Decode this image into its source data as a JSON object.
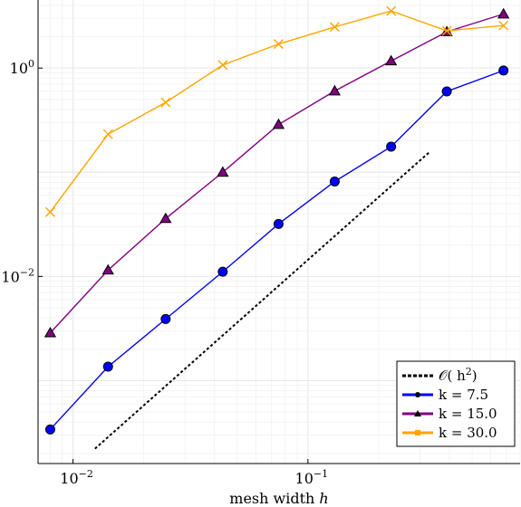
{
  "chart_data": {
    "type": "line",
    "title": "",
    "xlabel": "mesh width h",
    "ylabel": "",
    "xscale": "log",
    "yscale": "log",
    "xlim": [
      0.0071,
      0.8
    ],
    "ylim": [
      0.00016,
      4.5
    ],
    "grid": true,
    "legend_position": "bottom-right",
    "x_ticks": [
      {
        "value": 0.01,
        "base": "10",
        "exp": "−2"
      },
      {
        "value": 0.1,
        "base": "10",
        "exp": "−1"
      }
    ],
    "y_ticks": [
      {
        "value": 0.01,
        "base": "10",
        "exp": "−2"
      },
      {
        "value": 1,
        "base": "10",
        "exp": "0"
      }
    ],
    "series": [
      {
        "name": "O(h²)",
        "name_main": "𝒪( h",
        "name_sup": "2",
        "name_close": ")",
        "color": "#000000",
        "style": "dotted",
        "marker": "none",
        "x": [
          0.0124,
          0.332
        ],
        "y": [
          0.000222,
          0.159
        ]
      },
      {
        "name": "k = 7.5",
        "color": "#0000ff",
        "marker": "circle",
        "x": [
          0.008,
          0.0141,
          0.0248,
          0.0434,
          0.075,
          0.13,
          0.226,
          0.39,
          0.68
        ],
        "y": [
          0.00034,
          0.00136,
          0.0039,
          0.0111,
          0.0319,
          0.0815,
          0.176,
          0.597,
          0.947
        ]
      },
      {
        "name": "k = 15.0",
        "color": "#800080",
        "marker": "triangle",
        "x": [
          0.008,
          0.0141,
          0.0248,
          0.0434,
          0.075,
          0.13,
          0.226,
          0.39,
          0.68
        ],
        "y": [
          0.00287,
          0.0115,
          0.0359,
          0.1,
          0.287,
          0.602,
          1.17,
          2.23,
          3.3
        ]
      },
      {
        "name": "k = 30.0",
        "color": "#ffa500",
        "marker": "x",
        "x": [
          0.008,
          0.0141,
          0.0248,
          0.0434,
          0.075,
          0.13,
          0.226,
          0.39,
          0.68
        ],
        "y": [
          0.0415,
          0.232,
          0.468,
          1.07,
          1.7,
          2.48,
          3.53,
          2.28,
          2.56
        ]
      }
    ]
  }
}
